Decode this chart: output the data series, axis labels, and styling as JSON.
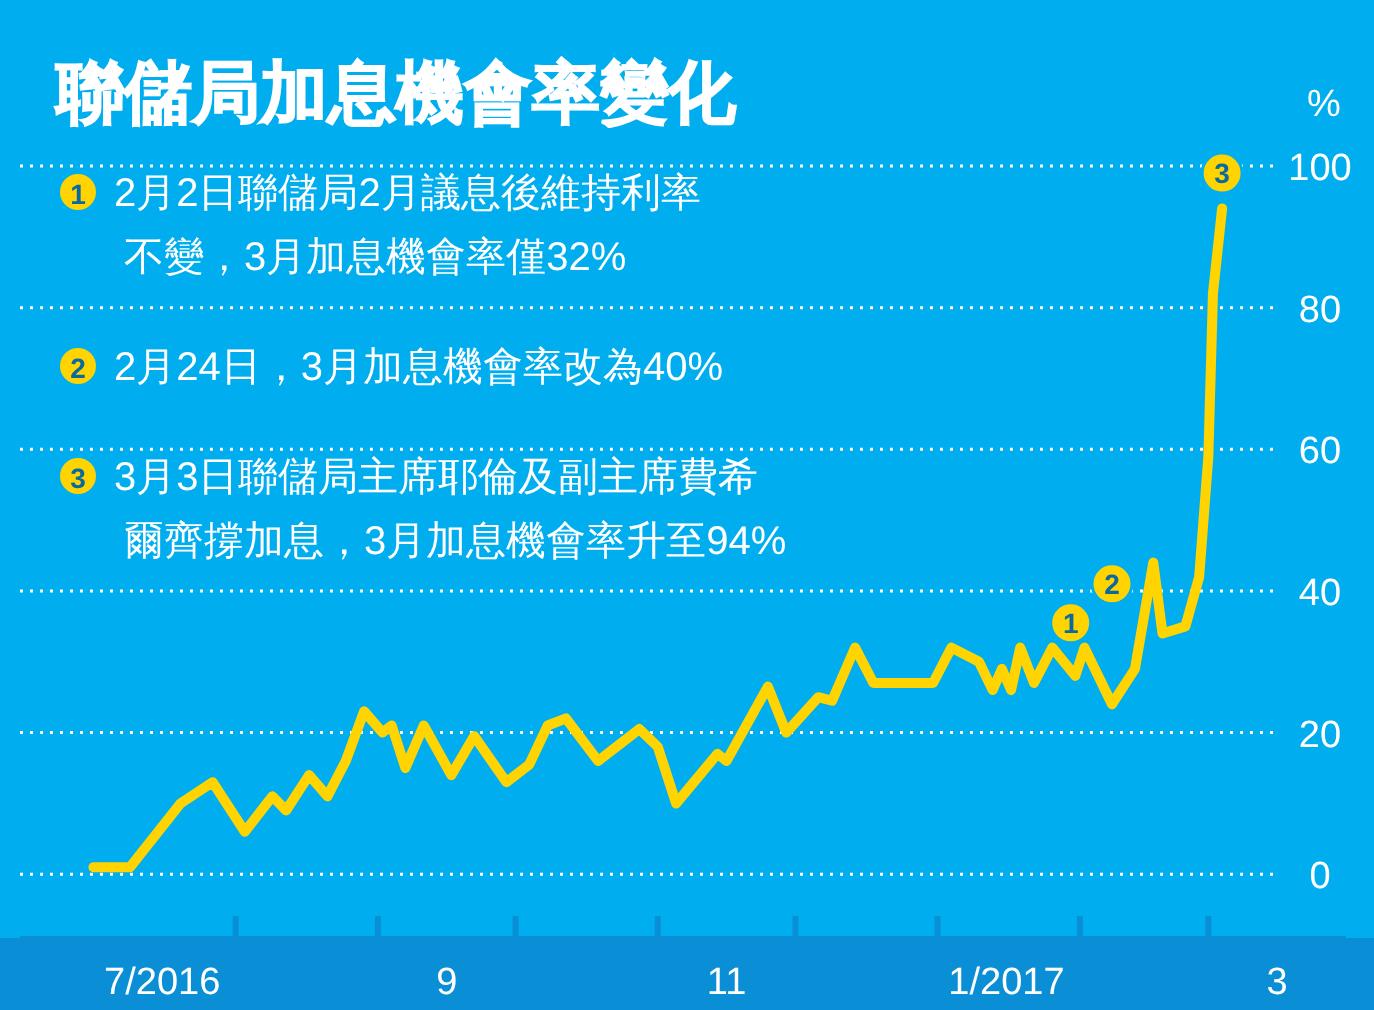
{
  "chart_data": {
    "type": "line",
    "title": "聯儲局加息機會率變化",
    "ylabel": "%",
    "x": [
      "2016-07-01",
      "2016-07-09",
      "2016-07-20",
      "2016-07-27",
      "2016-08-03",
      "2016-08-09",
      "2016-08-12",
      "2016-08-17",
      "2016-08-21",
      "2016-08-25",
      "2016-08-29",
      "2016-09-02",
      "2016-09-04",
      "2016-09-07",
      "2016-09-11",
      "2016-09-17",
      "2016-09-22",
      "2016-09-29",
      "2016-10-04",
      "2016-10-08",
      "2016-10-12",
      "2016-10-19",
      "2016-10-28",
      "2016-11-01",
      "2016-11-05",
      "2016-11-14",
      "2016-11-16",
      "2016-11-25",
      "2016-11-29",
      "2016-12-06",
      "2016-12-09",
      "2016-12-14",
      "2016-12-18",
      "2016-12-31",
      "2017-01-04",
      "2017-01-10",
      "2017-01-13",
      "2017-01-15",
      "2017-01-17",
      "2017-01-19",
      "2017-01-22",
      "2017-01-26",
      "2017-01-31",
      "2017-02-02",
      "2017-02-08",
      "2017-02-13",
      "2017-02-17",
      "2017-02-19",
      "2017-02-24",
      "2017-02-27",
      "2017-03-01",
      "2017-03-02",
      "2017-03-04"
    ],
    "series": [
      {
        "color": "#ffd400",
        "values": [
          1,
          1,
          10,
          13,
          6,
          11,
          9,
          14,
          11,
          16,
          23,
          20,
          21,
          15,
          21,
          14,
          19.5,
          13,
          15.5,
          21,
          22,
          16,
          20.5,
          18,
          10,
          17,
          16,
          26.5,
          20,
          25,
          24.5,
          32,
          27,
          27,
          32,
          30,
          26,
          29,
          26,
          32,
          27,
          32,
          28,
          32,
          24,
          29,
          44,
          34,
          35,
          42,
          59,
          82,
          94
        ]
      }
    ],
    "xlim": [
      "2016-06-15",
      "2017-03-31"
    ],
    "xticks": [
      {
        "value": "2016-07-16",
        "label": "7/2016"
      },
      {
        "value": "2016-08-01",
        "label": null
      },
      {
        "value": "2016-09-01",
        "label": null
      },
      {
        "value": "2016-09-16",
        "label": "9"
      },
      {
        "value": "2016-10-01",
        "label": null
      },
      {
        "value": "2016-11-01",
        "label": null
      },
      {
        "value": "2016-11-16",
        "label": "11"
      },
      {
        "value": "2016-12-01",
        "label": null
      },
      {
        "value": "2017-01-01",
        "label": null
      },
      {
        "value": "2017-01-16",
        "label": "1/2017"
      },
      {
        "value": "2017-02-01",
        "label": null
      },
      {
        "value": "2017-03-01",
        "label": null
      },
      {
        "value": "2017-03-16",
        "label": "3"
      }
    ],
    "ylim": [
      -9,
      100
    ],
    "yticks": [
      0,
      20,
      40,
      60,
      80,
      100
    ],
    "grid": "y",
    "line_style": "solid",
    "marker": "none",
    "annotations": [
      {
        "text": "1",
        "x": "2017-01-30",
        "y": 35.5
      },
      {
        "text": "2",
        "x": "2017-02-08",
        "y": 41
      },
      {
        "text": "3",
        "x": "2017-03-04",
        "y": 99
      },
      "2月2日聯儲局2月議息後維持利率不變，3月加息機會率僅32%",
      "2月24日，3月加息機會率改為40%",
      "3月3日聯儲局主席耶倫及副主席費希爾齊撐加息，3月加息機會率升至94%"
    ]
  }
}
